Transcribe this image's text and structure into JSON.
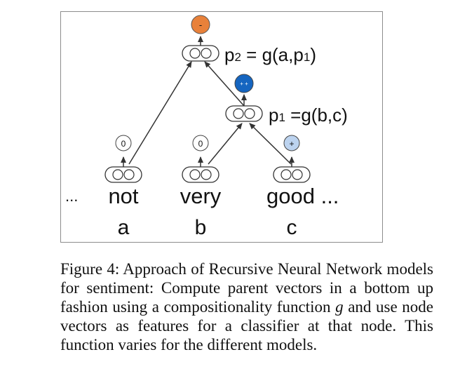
{
  "diagram": {
    "parent2": {
      "label_prefix": "p",
      "label_sub": "2",
      "label_eq": " = g(a,p",
      "label_sub2": "1",
      "label_end": ")",
      "sentiment": "-",
      "sentiment_color": "#e8813a"
    },
    "parent1": {
      "label_prefix": "p",
      "label_sub": "1",
      "label_eq": " =g(b,c)",
      "sentiment": "+ +",
      "sentiment_color": "#1565c0"
    },
    "leaves": [
      {
        "word": "not",
        "var": "a",
        "sentiment": "0",
        "sentiment_color": "#ffffff"
      },
      {
        "word": "very",
        "var": "b",
        "sentiment": "0",
        "sentiment_color": "#ffffff"
      },
      {
        "word": "good ...",
        "var": "c",
        "sentiment": "+",
        "sentiment_color": "#bcd3ef"
      }
    ],
    "leading_ellipsis": "...",
    "border_color": "#8c8c8c"
  },
  "caption": {
    "prefix": "Figure 4: Approach of Recursive Neural Network models for sentiment: Compute parent vectors in a bottom up fashion using a compositionality function ",
    "var": "g",
    "suffix": " and use node vectors as features for a classifier at that node. This function varies for the different models."
  }
}
